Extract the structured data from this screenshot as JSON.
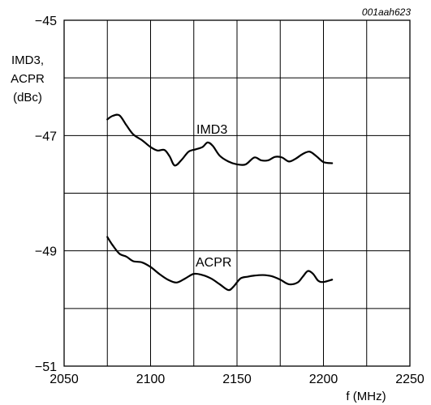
{
  "chart_data": {
    "type": "line",
    "figure_code": "001aah623",
    "ylabel_lines": [
      "IMD3,",
      "ACPR",
      "(dBc)"
    ],
    "xlabel": "f (MHz)",
    "xlim": [
      2050,
      2250
    ],
    "ylim": [
      -51,
      -45
    ],
    "x_ticks": [
      2050,
      2100,
      2150,
      2200,
      2250
    ],
    "y_ticks": [
      -45,
      -47,
      -49,
      -51
    ],
    "x_tick_labels": [
      "2050",
      "2100",
      "2150",
      "2200",
      "2250"
    ],
    "y_tick_labels": [
      "−45",
      "−47",
      "−49",
      "−51"
    ],
    "grid": true,
    "series": [
      {
        "name": "IMD3",
        "x": [
          2075,
          2078,
          2082,
          2086,
          2090,
          2095,
          2100,
          2104,
          2108,
          2111,
          2114,
          2118,
          2122,
          2126,
          2130,
          2133,
          2136,
          2140,
          2145,
          2150,
          2155,
          2160,
          2164,
          2168,
          2172,
          2176,
          2180,
          2184,
          2188,
          2192,
          2196,
          2200,
          2205
        ],
        "y": [
          -46.72,
          -46.66,
          -46.65,
          -46.82,
          -46.98,
          -47.08,
          -47.2,
          -47.26,
          -47.25,
          -47.36,
          -47.52,
          -47.42,
          -47.28,
          -47.24,
          -47.2,
          -47.12,
          -47.18,
          -47.35,
          -47.45,
          -47.5,
          -47.5,
          -47.38,
          -47.43,
          -47.43,
          -47.37,
          -47.38,
          -47.45,
          -47.4,
          -47.32,
          -47.28,
          -47.36,
          -47.46,
          -47.48
        ]
      },
      {
        "name": "ACPR",
        "x": [
          2075,
          2078,
          2082,
          2086,
          2090,
          2095,
          2100,
          2105,
          2110,
          2115,
          2120,
          2125,
          2130,
          2135,
          2140,
          2145,
          2148,
          2152,
          2156,
          2160,
          2165,
          2170,
          2175,
          2180,
          2185,
          2188,
          2191,
          2194,
          2197,
          2200,
          2205
        ],
        "y": [
          -48.76,
          -48.9,
          -49.05,
          -49.1,
          -49.18,
          -49.2,
          -49.28,
          -49.4,
          -49.5,
          -49.55,
          -49.48,
          -49.4,
          -49.42,
          -49.48,
          -49.58,
          -49.68,
          -49.62,
          -49.48,
          -49.45,
          -49.43,
          -49.42,
          -49.44,
          -49.5,
          -49.58,
          -49.55,
          -49.45,
          -49.35,
          -49.4,
          -49.52,
          -49.54,
          -49.5
        ]
      }
    ],
    "series_labels": [
      {
        "name": "IMD3",
        "text": "IMD3"
      },
      {
        "name": "ACPR",
        "text": "ACPR"
      }
    ]
  }
}
